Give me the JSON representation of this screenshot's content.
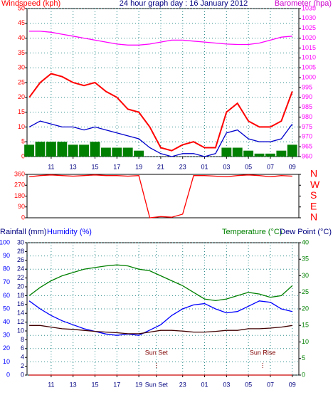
{
  "chart_data": [
    {
      "type": "line",
      "title": "24 hour graph day : 16 January 2012",
      "ylabel": "Windspeed (kph)",
      "y2label": "Barometer (hpa)",
      "x": [
        9,
        10,
        11,
        12,
        13,
        14,
        15,
        16,
        17,
        18,
        19,
        20,
        21,
        22,
        23,
        24,
        25,
        26,
        27,
        28,
        29,
        30,
        31,
        32,
        33
      ],
      "xlim": [
        8.8,
        33.6
      ],
      "xticks": [
        11,
        13,
        15,
        17,
        19,
        21,
        23,
        {
          "value": 25,
          "label": "01"
        },
        {
          "value": 27,
          "label": "03"
        },
        {
          "value": 29,
          "label": "05"
        },
        {
          "value": 31,
          "label": "07"
        },
        {
          "value": 33,
          "label": "09"
        }
      ],
      "ylim": [
        0,
        50
      ],
      "yticks": [
        0,
        5,
        10,
        15,
        20,
        25,
        30,
        35,
        40,
        45,
        50
      ],
      "y2lim": [
        960,
        1035
      ],
      "y2ticks": [
        960,
        965,
        970,
        975,
        980,
        985,
        990,
        995,
        1000,
        1005,
        1010,
        1015,
        1020,
        1025,
        1030,
        1035
      ],
      "grid": true,
      "series": [
        {
          "color": "#008000",
          "type": "bar",
          "values": [
            4,
            5,
            5,
            5,
            4,
            4,
            5,
            3,
            3,
            3,
            2,
            0,
            0,
            0,
            0,
            0,
            0,
            0,
            3,
            3,
            2,
            1,
            1,
            2,
            4
          ]
        },
        {
          "color": "#ff0000",
          "values": [
            20,
            25,
            28,
            27,
            25,
            24,
            25,
            22,
            20,
            16,
            15,
            10,
            3,
            2,
            4,
            5,
            3,
            3,
            15,
            18,
            12,
            10,
            10,
            12,
            22
          ]
        },
        {
          "color": "#0000cc",
          "values": [
            10,
            12,
            11,
            10,
            10,
            9,
            10,
            9,
            8,
            7,
            6,
            3,
            1,
            0,
            1,
            1,
            0,
            1,
            8,
            9,
            6,
            5,
            5,
            6,
            11
          ]
        },
        {
          "color": "#ff00ff",
          "axis": "y2",
          "values": [
            1023.5,
            1023.5,
            1023,
            1022,
            1021,
            1020,
            1019,
            1018,
            1017,
            1016.5,
            1016.5,
            1017,
            1018,
            1019,
            1019,
            1018.5,
            1018,
            1017.5,
            1017,
            1016.8,
            1016.8,
            1017.5,
            1019,
            1020.5,
            1021
          ]
        }
      ]
    },
    {
      "type": "line",
      "x": [
        9,
        10,
        11,
        12,
        13,
        14,
        15,
        16,
        17,
        18,
        19,
        20,
        21,
        22,
        23,
        24,
        25,
        26,
        27,
        28,
        29,
        30,
        31,
        32,
        33
      ],
      "xlim": [
        8.8,
        33.6
      ],
      "ylim": [
        0,
        360
      ],
      "yticks": [
        0,
        90,
        180,
        270,
        360
      ],
      "y2lim": [
        0,
        360
      ],
      "y2ticks": [
        {
          "value": 360,
          "label": "N"
        },
        {
          "value": 270,
          "label": "W"
        },
        {
          "value": 180,
          "label": "S"
        },
        {
          "value": 90,
          "label": "E"
        },
        {
          "value": 0,
          "label": "N"
        }
      ],
      "series": [
        {
          "color": "#ff0000",
          "values": [
            340,
            350,
            355,
            350,
            345,
            350,
            355,
            350,
            350,
            345,
            350,
            0,
            10,
            5,
            30,
            350,
            350,
            345,
            340,
            350,
            355,
            350,
            340,
            350,
            345
          ]
        }
      ]
    },
    {
      "type": "line",
      "ylabel": "Rainfall (mm)",
      "humidity_label": "Humidity (%)",
      "y2label": "Temperature (°C)",
      "y3label": "Dew Point (°C)",
      "x": [
        9,
        10,
        11,
        12,
        13,
        14,
        15,
        16,
        17,
        18,
        19,
        20,
        21,
        22,
        23,
        24,
        25,
        26,
        27,
        28,
        29,
        30,
        31,
        32,
        33
      ],
      "xlim": [
        8.8,
        33.6
      ],
      "xticks": [
        11,
        13,
        15,
        17,
        19,
        {
          "value": 20.6,
          "label": "Sun Set"
        },
        23,
        {
          "value": 25,
          "label": "01"
        },
        {
          "value": 27,
          "label": "03"
        },
        {
          "value": 29,
          "label": "05"
        },
        {
          "value": 31,
          "label": "07"
        },
        {
          "value": 33,
          "label": "09"
        }
      ],
      "ylim": [
        0,
        30
      ],
      "yticks": [
        0,
        2,
        4,
        6,
        8,
        10,
        12,
        14,
        16,
        18,
        20,
        22,
        24,
        26,
        28,
        30
      ],
      "humidity_lim": [
        0,
        100
      ],
      "humidity_ticks": [
        0,
        10,
        20,
        30,
        40,
        50,
        60,
        70,
        80,
        90,
        100
      ],
      "y2lim": [
        0,
        40
      ],
      "y2ticks": [
        0,
        5,
        10,
        15,
        20,
        25,
        30,
        35,
        40
      ],
      "grid": true,
      "annotations": [
        {
          "text": "Sun Set",
          "x": 20.6
        },
        {
          "text": "Sun Rise",
          "x": 30.3
        }
      ],
      "series": [
        {
          "color": "#cc0000",
          "values": [
            0,
            0,
            0,
            0,
            0,
            0,
            0,
            0,
            0,
            0,
            0,
            0,
            0,
            0,
            0,
            0,
            0,
            0,
            0,
            0,
            0,
            0,
            0,
            0,
            0
          ]
        },
        {
          "color": "#0000ff",
          "axis": "humidity",
          "values": [
            56,
            50,
            45,
            41,
            38,
            35,
            33,
            31,
            30,
            31,
            30,
            34,
            38,
            45,
            50,
            53,
            54,
            50,
            47,
            48,
            52,
            56,
            55,
            50,
            48
          ]
        },
        {
          "color": "#008000",
          "axis": "y2",
          "values": [
            24,
            26.5,
            28.5,
            30,
            31,
            32,
            32.5,
            33,
            33.3,
            33,
            32,
            31.5,
            30,
            28.5,
            27,
            25,
            23,
            22.5,
            23,
            24,
            25,
            24.5,
            23.5,
            24,
            27
          ]
        },
        {
          "color": "#400000",
          "axis": "y2",
          "values": [
            15,
            15,
            14.5,
            14,
            13.8,
            13.5,
            13.2,
            13,
            12.8,
            12.5,
            12.5,
            13,
            13.5,
            13.5,
            13.3,
            13,
            13,
            13.2,
            13.5,
            13.5,
            14,
            14,
            14.2,
            14.5,
            15
          ]
        }
      ]
    }
  ]
}
